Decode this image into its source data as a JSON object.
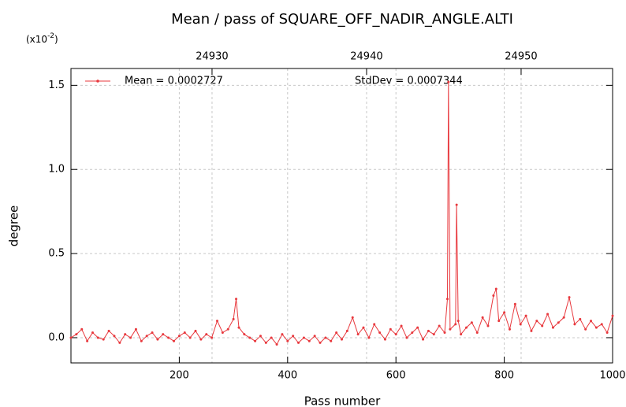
{
  "chart_data": {
    "type": "line",
    "title": "Mean / pass of SQUARE_OFF_NADIR_ANGLE.ALTI",
    "x_label": "Pass number",
    "y_label": "degree",
    "y_scale": {
      "prefix": "(x10",
      "exponent": "-2",
      "suffix": ")"
    },
    "annotations": [
      "Mean = 0.0002727",
      "StdDev = 0.0007344"
    ],
    "xlim": [
      0,
      1000
    ],
    "xticks": [
      200,
      400,
      600,
      800,
      1000
    ],
    "x2lim": [
      24920.87,
      24955.92
    ],
    "x2ticks": [
      24930,
      24940,
      24950
    ],
    "ylim": [
      -0.15,
      1.6
    ],
    "yticks": [
      {
        "value": 0,
        "label": "0.0"
      },
      {
        "value": 0.5,
        "label": "0.5"
      },
      {
        "value": 1,
        "label": "1.0"
      },
      {
        "value": 1.5,
        "label": "1.5"
      }
    ],
    "grid": true,
    "x": [
      0,
      10,
      20,
      30,
      40,
      50,
      60,
      70,
      80,
      90,
      100,
      110,
      120,
      130,
      140,
      150,
      160,
      170,
      180,
      190,
      200,
      210,
      220,
      230,
      240,
      250,
      260,
      270,
      280,
      290,
      300,
      305,
      310,
      320,
      330,
      340,
      350,
      360,
      370,
      380,
      390,
      400,
      410,
      420,
      430,
      440,
      450,
      460,
      470,
      480,
      490,
      500,
      510,
      520,
      530,
      540,
      550,
      560,
      570,
      580,
      590,
      600,
      610,
      620,
      630,
      640,
      650,
      660,
      670,
      680,
      690,
      695,
      697,
      700,
      710,
      712,
      715,
      720,
      730,
      740,
      750,
      760,
      770,
      780,
      785,
      790,
      800,
      810,
      820,
      830,
      840,
      850,
      860,
      870,
      880,
      890,
      900,
      910,
      920,
      930,
      940,
      950,
      960,
      970,
      980,
      990,
      1000
    ],
    "series": [
      {
        "color": "#e8383d",
        "values": [
          0.0,
          0.02,
          0.05,
          -0.02,
          0.03,
          0.0,
          -0.01,
          0.04,
          0.01,
          -0.03,
          0.02,
          0.0,
          0.05,
          -0.02,
          0.01,
          0.03,
          -0.01,
          0.02,
          0.0,
          -0.02,
          0.01,
          0.03,
          0.0,
          0.04,
          -0.01,
          0.02,
          0.0,
          0.1,
          0.03,
          0.05,
          0.11,
          0.23,
          0.06,
          0.02,
          0.0,
          -0.02,
          0.01,
          -0.03,
          0.0,
          -0.04,
          0.02,
          -0.02,
          0.01,
          -0.03,
          0.0,
          -0.02,
          0.01,
          -0.03,
          0.0,
          -0.02,
          0.03,
          -0.01,
          0.04,
          0.12,
          0.02,
          0.06,
          0.0,
          0.08,
          0.03,
          -0.01,
          0.05,
          0.02,
          0.07,
          0.0,
          0.03,
          0.06,
          -0.01,
          0.04,
          0.02,
          0.07,
          0.03,
          0.23,
          1.52,
          0.05,
          0.08,
          0.79,
          0.1,
          0.02,
          0.06,
          0.09,
          0.03,
          0.12,
          0.07,
          0.25,
          0.29,
          0.1,
          0.15,
          0.05,
          0.2,
          0.08,
          0.13,
          0.04,
          0.1,
          0.07,
          0.14,
          0.06,
          0.09,
          0.12,
          0.24,
          0.08,
          0.11,
          0.05,
          0.1,
          0.06,
          0.08,
          0.03,
          0.13
        ]
      }
    ]
  }
}
